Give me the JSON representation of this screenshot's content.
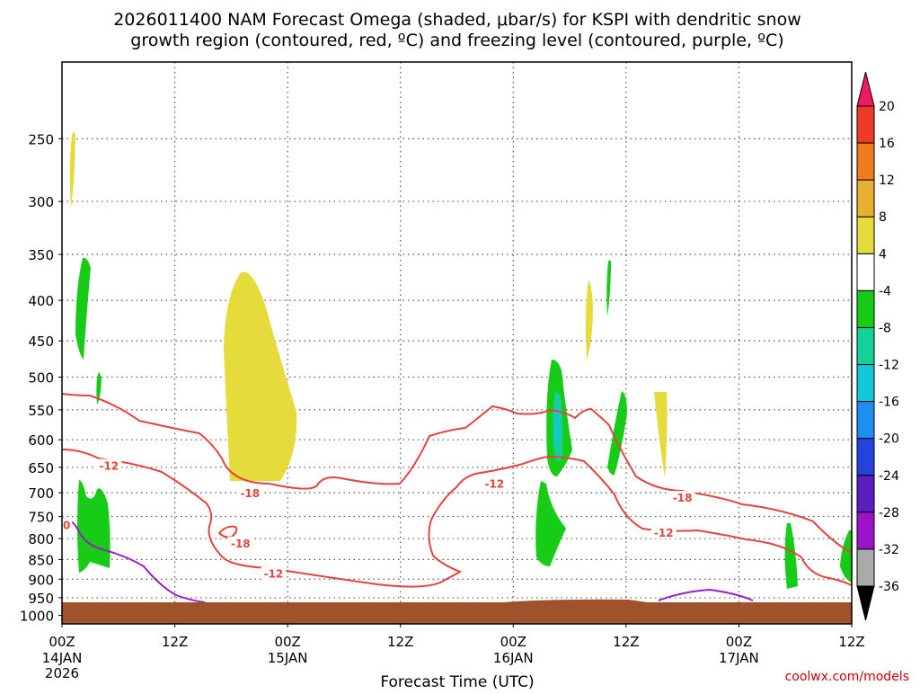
{
  "chart_data": {
    "type": "heatmap",
    "title_line1": "2026011400 NAM Forecast Omega (shaded, μbar/s) for KSPI with dendritic snow",
    "title_line2": "growth region (contoured, red, ºC) and freezing level (contoured, purple, ºC)",
    "xlabel": "Forecast Time (UTC)",
    "ylabel": "",
    "x_forecast_hour_range": [
      0,
      84
    ],
    "x_ticks": [
      {
        "hour": 0,
        "label": "00Z",
        "date": "14JAN",
        "year": "2026"
      },
      {
        "hour": 12,
        "label": "12Z",
        "date": "",
        "year": ""
      },
      {
        "hour": 24,
        "label": "00Z",
        "date": "15JAN",
        "year": ""
      },
      {
        "hour": 36,
        "label": "12Z",
        "date": "",
        "year": ""
      },
      {
        "hour": 48,
        "label": "00Z",
        "date": "16JAN",
        "year": ""
      },
      {
        "hour": 60,
        "label": "12Z",
        "date": "",
        "year": ""
      },
      {
        "hour": 72,
        "label": "00Z",
        "date": "17JAN",
        "year": ""
      },
      {
        "hour": 84,
        "label": "12Z",
        "date": "",
        "year": ""
      }
    ],
    "y_pressure_range_hpa": [
      1025,
      200
    ],
    "y_ticks": [
      250,
      300,
      350,
      400,
      450,
      500,
      550,
      600,
      650,
      700,
      750,
      800,
      850,
      900,
      950,
      1000
    ],
    "colorbar": {
      "labels": [
        "20",
        "16",
        "12",
        "8",
        "4",
        "-4",
        "-8",
        "-12",
        "-16",
        "-20",
        "-24",
        "-28",
        "-32",
        "-36"
      ],
      "colors": [
        "#ee1a5e",
        "#ee3a2a",
        "#f07a1e",
        "#e9b030",
        "#e5dc3c",
        "#ffffff",
        "#16cc16",
        "#16d09a",
        "#10c8d8",
        "#1e8ef0",
        "#2244dd",
        "#5a1ebe",
        "#9c14c8",
        "#aaaaaa",
        "#000000"
      ]
    },
    "contour_labels": [
      {
        "text": "-12",
        "hour": 5.0,
        "p": 648
      },
      {
        "text": "-18",
        "hour": 20.0,
        "p": 702
      },
      {
        "text": "-12",
        "hour": 22.5,
        "p": 887
      },
      {
        "text": "-12",
        "hour": 46.0,
        "p": 683
      },
      {
        "text": "-18",
        "hour": 66.0,
        "p": 711
      },
      {
        "text": "-12",
        "hour": 64.0,
        "p": 787
      },
      {
        "text": "-18",
        "hour": 19.0,
        "p": 812
      },
      {
        "text": "0",
        "hour": 0.5,
        "p": 770
      }
    ],
    "credit": "coolwx.com/models"
  }
}
